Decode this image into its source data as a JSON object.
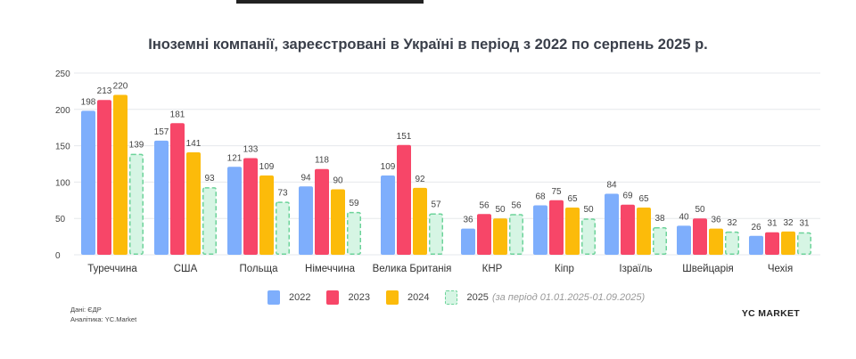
{
  "chart_data": {
    "type": "bar",
    "title": "Іноземні компанії, зареєстровані в Україні в період з 2022 по серпень 2025 р.",
    "categories": [
      "Туреччина",
      "США",
      "Польща",
      "Німеччина",
      "Велика Британія",
      "КНР",
      "Кіпр",
      "Ізраїль",
      "Швейцарія",
      "Чехія"
    ],
    "series": [
      {
        "name": "2022",
        "color": "#7eaefc",
        "values": [
          198,
          157,
          121,
          94,
          109,
          36,
          68,
          84,
          40,
          26
        ]
      },
      {
        "name": "2023",
        "color": "#f74668",
        "values": [
          213,
          181,
          133,
          118,
          151,
          56,
          75,
          69,
          50,
          31
        ]
      },
      {
        "name": "2024",
        "color": "#fcbb0a",
        "values": [
          220,
          141,
          109,
          90,
          92,
          50,
          65,
          65,
          36,
          32
        ]
      },
      {
        "name": "2025",
        "note": "(за період 01.01.2025-01.09.2025)",
        "color": "#d6f5e4",
        "border": "#6dd39a",
        "dashed": true,
        "values": [
          139,
          93,
          73,
          59,
          57,
          56,
          50,
          38,
          32,
          31
        ]
      }
    ],
    "yticks": [
      0,
      50,
      100,
      150,
      200,
      250
    ],
    "ylim": [
      0,
      250
    ],
    "grid": true,
    "legend": "bottom"
  },
  "footer": {
    "source": "Дані: ЄДР",
    "analytics": "Аналітика: YC.Market",
    "brand": "YC MARKET"
  }
}
